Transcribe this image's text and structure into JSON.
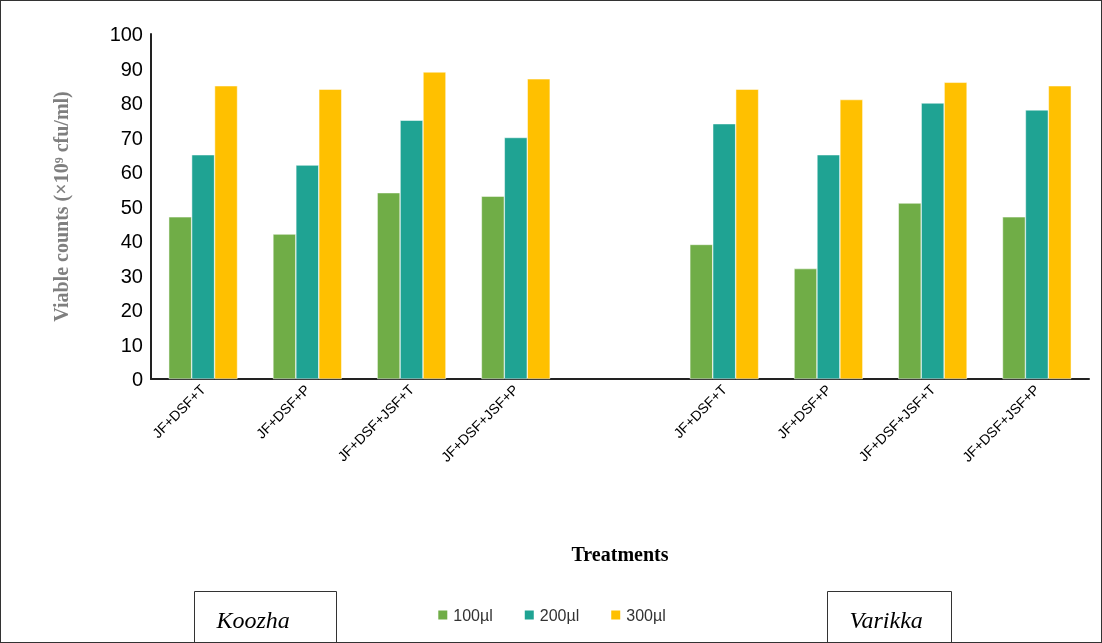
{
  "chart_data": {
    "type": "bar",
    "xlabel": "Treatments",
    "ylabel": "Viable counts (×10⁹ cfu/ml)",
    "categories": [
      "JF+DSF+T",
      "JF+DSF+P",
      "JF+DSF+JSF+T",
      "JF+DSF+JSF+P",
      null,
      "JF+DSF+T",
      "JF+DSF+P",
      "JF+DSF+JSF+T",
      "JF+DSF+JSF+P"
    ],
    "series": [
      {
        "name": "100µl",
        "color": "#70ad47",
        "values": [
          47,
          42,
          54,
          53,
          null,
          39,
          32,
          51,
          47
        ]
      },
      {
        "name": "200µl",
        "color": "#1fa393",
        "values": [
          65,
          62,
          75,
          70,
          null,
          74,
          65,
          80,
          78
        ]
      },
      {
        "name": "300µl",
        "color": "#ffc000",
        "values": [
          85,
          84,
          89,
          87,
          null,
          84,
          81,
          86,
          85
        ]
      }
    ],
    "ylim": [
      0,
      100
    ],
    "yticks": [
      0,
      10,
      20,
      30,
      40,
      50,
      60,
      70,
      80,
      90,
      100
    ],
    "grid": false,
    "legend": "bottom",
    "annotations": [
      "Koozha",
      "Varikka"
    ]
  }
}
